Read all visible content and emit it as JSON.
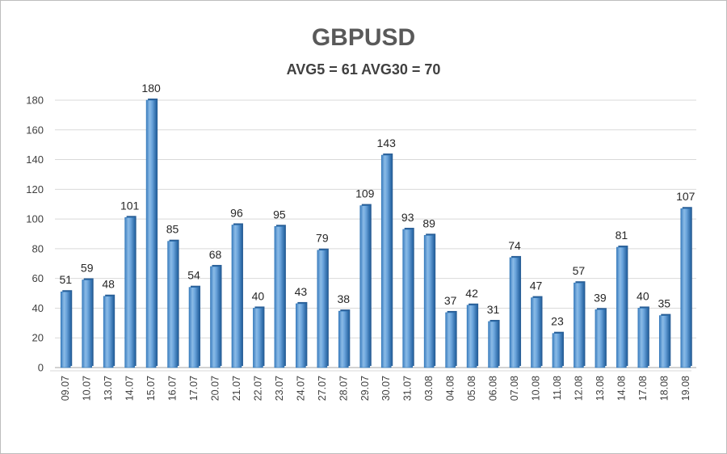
{
  "chart_data": {
    "type": "bar",
    "title": "GBPUSD",
    "subtitle": "AVG5 = 61 AVG30 = 70",
    "xlabel": "",
    "ylabel": "",
    "ylim": [
      0,
      180
    ],
    "yticks": [
      0,
      20,
      40,
      60,
      80,
      100,
      120,
      140,
      160,
      180
    ],
    "grid": "horizontal",
    "legend": "none",
    "bar_color": "#5b9bd5",
    "bar_edge_color": "#2e75b6",
    "categories": [
      "09.07",
      "10.07",
      "13.07",
      "14.07",
      "15.07",
      "16.07",
      "17.07",
      "20.07",
      "21.07",
      "22.07",
      "23.07",
      "24.07",
      "27.07",
      "28.07",
      "29.07",
      "30.07",
      "31.07",
      "03.08",
      "04.08",
      "05.08",
      "06.08",
      "07.08",
      "10.08",
      "11.08",
      "12.08",
      "13.08",
      "14.08",
      "17.08",
      "18.08",
      "19.08"
    ],
    "values": [
      51,
      59,
      48,
      101,
      180,
      85,
      54,
      68,
      96,
      40,
      95,
      43,
      79,
      38,
      109,
      143,
      93,
      89,
      37,
      42,
      31,
      74,
      47,
      23,
      57,
      39,
      81,
      40,
      35,
      107
    ]
  }
}
